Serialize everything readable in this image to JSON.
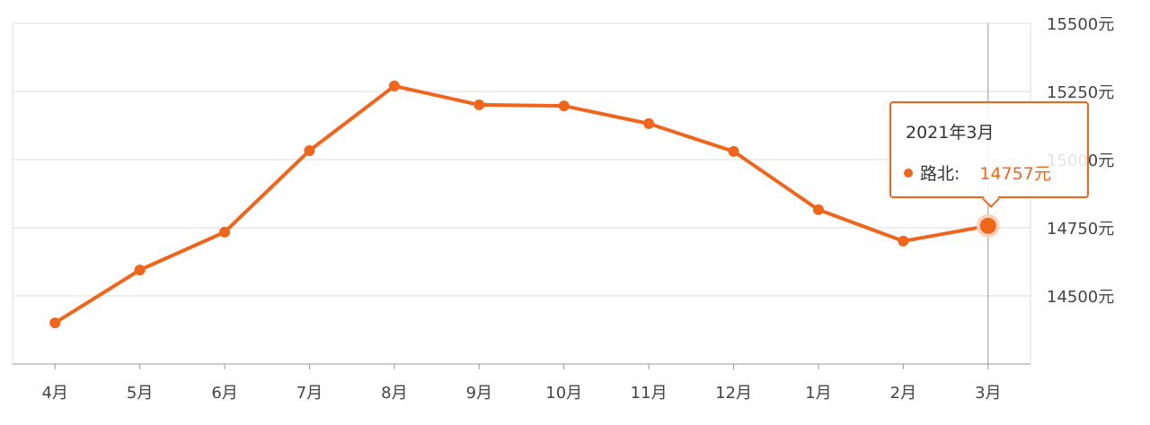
{
  "chart_data": {
    "type": "line",
    "categories": [
      "4月",
      "5月",
      "6月",
      "7月",
      "8月",
      "9月",
      "10月",
      "11月",
      "12月",
      "1月",
      "2月",
      "3月"
    ],
    "series": [
      {
        "name": "路北",
        "values": [
          14401,
          14595,
          14734,
          15033,
          15270,
          15201,
          15197,
          15132,
          15030,
          14816,
          14701,
          14757
        ]
      }
    ],
    "yticks": [
      "14500元",
      "14750元",
      "15000元",
      "15250元",
      "15500元"
    ],
    "ylim": [
      14250,
      15500
    ],
    "ytick_values": [
      14500,
      14750,
      15000,
      15250,
      15500
    ],
    "grid": true,
    "y_axis_side": "right",
    "color": "#f0651c"
  },
  "tooltip": {
    "title": "2021年3月",
    "series": "路北:",
    "value": "14757元"
  }
}
